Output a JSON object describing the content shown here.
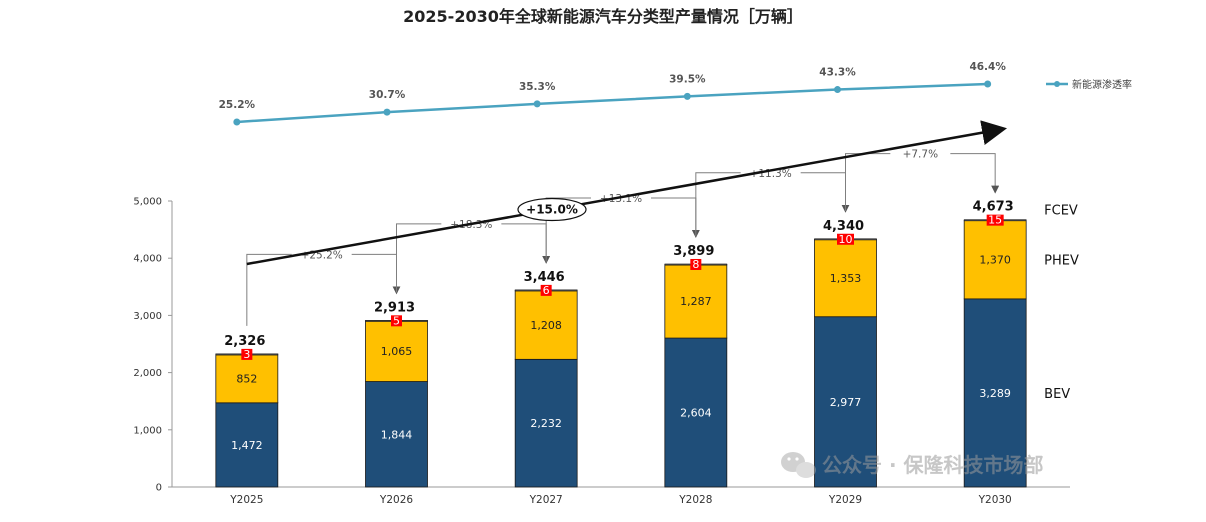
{
  "title": "2025-2030年全球新能源汽车分类型产量情况［万辆］",
  "legend": {
    "label": "新能源渗透率"
  },
  "cagr_label": "+15.0%",
  "watermark": "公众号 · 保隆科技市场部",
  "colors": {
    "bev": "#1f4e79",
    "phev": "#ffc000",
    "fcev": "#ff0000",
    "line": "#4aa3c0",
    "arrow": "#111111",
    "bracket": "#7f7f7f"
  },
  "chart_data": {
    "type": "bar",
    "stacked": true,
    "categories": [
      "Y2025",
      "Y2026",
      "Y2027",
      "Y2028",
      "Y2029",
      "Y2030"
    ],
    "series": [
      {
        "name": "BEV",
        "values": [
          1472,
          1844,
          2232,
          2604,
          2977,
          3289
        ]
      },
      {
        "name": "PHEV",
        "values": [
          852,
          1065,
          1208,
          1287,
          1353,
          1370
        ]
      },
      {
        "name": "FCEV",
        "values": [
          3,
          5,
          6,
          8,
          10,
          15
        ]
      }
    ],
    "totals": [
      "2,326",
      "2,913",
      "3,446",
      "3,899",
      "4,340",
      "4,673"
    ],
    "growth_labels": [
      "+25.2%",
      "+18.3%",
      "+13.1%",
      "+11.3%",
      "+7.7%"
    ],
    "ylim": [
      0,
      5000
    ],
    "yticks": [
      "0",
      "1,000",
      "2,000",
      "3,000",
      "4,000",
      "5,000"
    ],
    "line_series": {
      "name": "新能源渗透率",
      "values": [
        25.2,
        30.7,
        35.3,
        39.5,
        43.3,
        46.4
      ],
      "labels": [
        "25.2%",
        "30.7%",
        "35.3%",
        "39.5%",
        "43.3%",
        "46.4%"
      ]
    }
  }
}
